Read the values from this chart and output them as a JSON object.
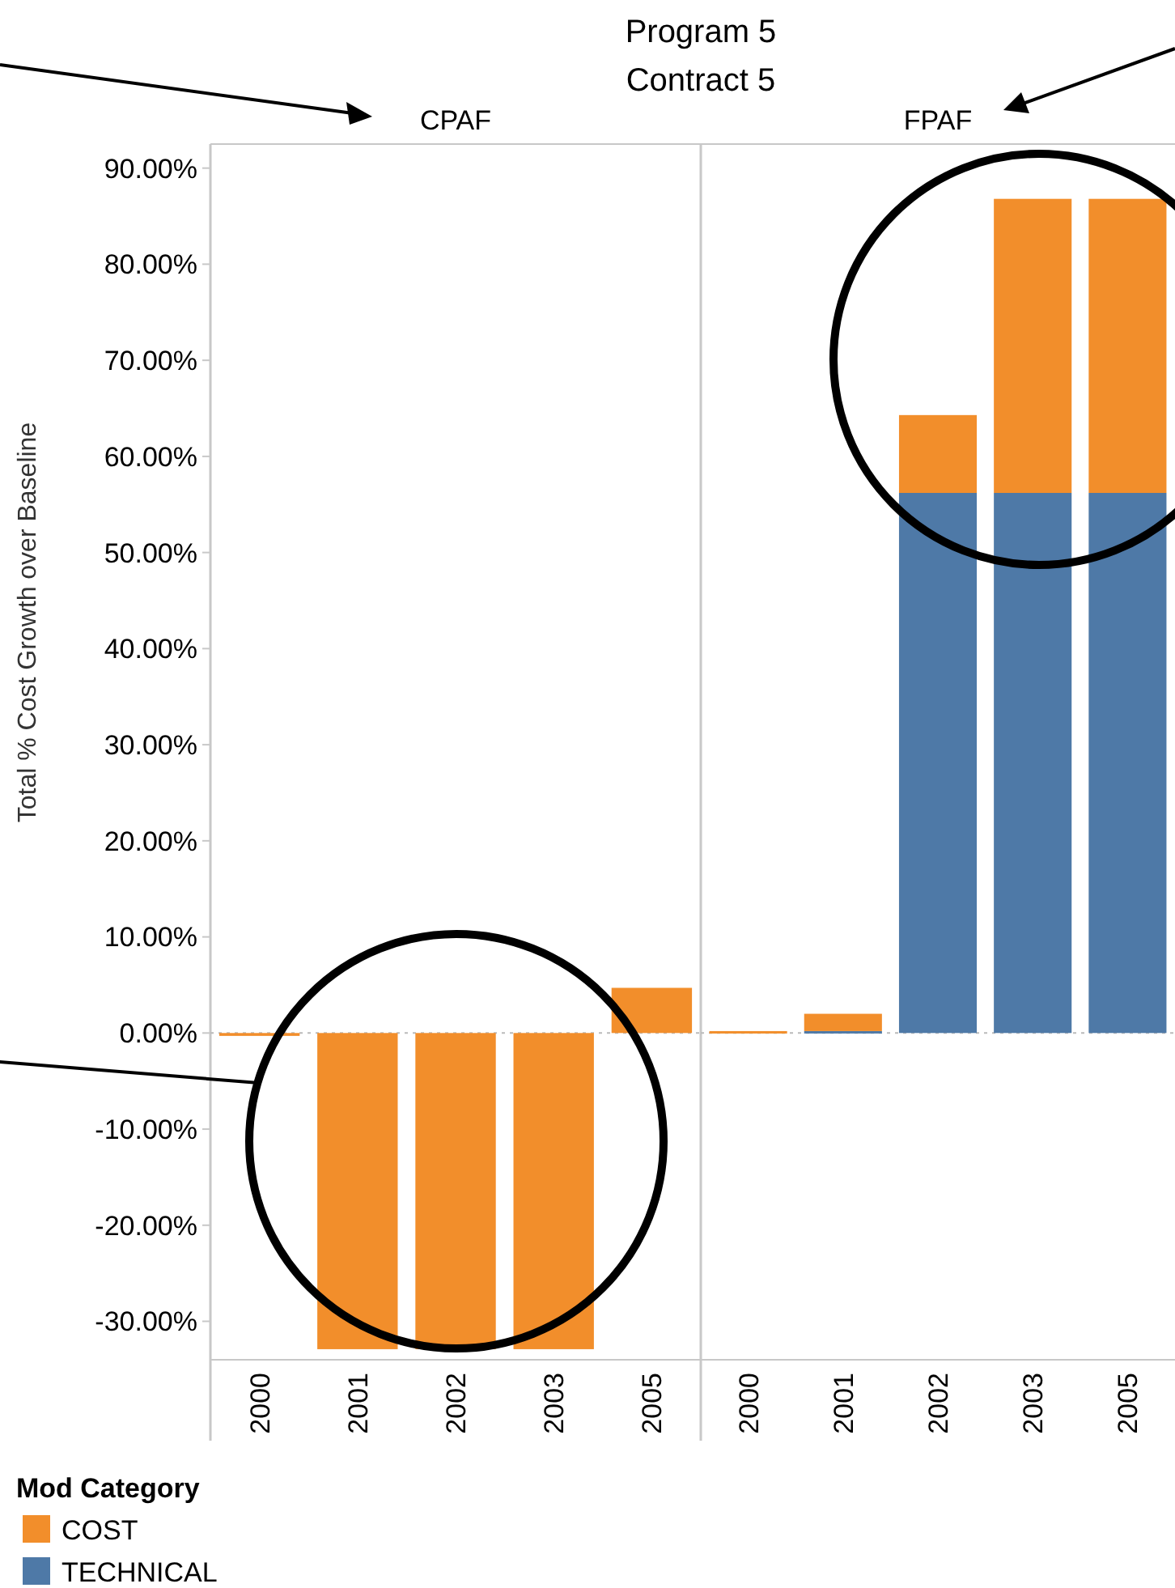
{
  "chart_data": [
    {
      "type": "bar",
      "title": "CPAF",
      "annotations": [
        "Program 5",
        "Contract 5"
      ],
      "ylabel": "Total % Cost Growth over Baseline",
      "legend_title": "Mod Category",
      "legend": "bottom",
      "stacked": true,
      "categories": [
        "2000",
        "2001",
        "2002",
        "2003",
        "2005"
      ],
      "series": [
        {
          "name": "TECHNICAL",
          "color": "#4e79a7",
          "values": [
            null,
            null,
            null,
            null,
            null
          ]
        },
        {
          "name": "COST",
          "color": "#f28e2b",
          "values": [
            -0.3,
            -32.9,
            -32.9,
            -32.9,
            4.7
          ]
        }
      ],
      "ref_lines": [
        {
          "axis": "y",
          "value": 0,
          "line_style": "dotted",
          "color": "#bbbbbb"
        }
      ],
      "ylim": [
        -34,
        92.5
      ],
      "yticks": [
        {
          "value": -30,
          "label": "-30.00%"
        },
        {
          "value": -20,
          "label": "-20.00%"
        },
        {
          "value": -10,
          "label": "-10.00%"
        },
        {
          "value": 0,
          "label": "0.00%"
        },
        {
          "value": 10,
          "label": "10.00%"
        },
        {
          "value": 20,
          "label": "20.00%"
        },
        {
          "value": 30,
          "label": "30.00%"
        },
        {
          "value": 40,
          "label": "40.00%"
        },
        {
          "value": 50,
          "label": "50.00%"
        },
        {
          "value": 60,
          "label": "60.00%"
        },
        {
          "value": 70,
          "label": "70.00%"
        },
        {
          "value": 80,
          "label": "80.00%"
        },
        {
          "value": 90,
          "label": "90.00%"
        }
      ]
    },
    {
      "type": "bar",
      "title": "FPAF",
      "stacked": true,
      "tick_labels": "x",
      "categories": [
        "2000",
        "2001",
        "2002",
        "2003",
        "2005"
      ],
      "series": [
        {
          "color": "#4e79a7",
          "values": [
            null,
            0.2,
            56.2,
            56.2,
            56.2
          ]
        },
        {
          "color": "#f28e2b",
          "values": [
            0.2,
            1.8,
            8.1,
            30.6,
            30.6
          ]
        }
      ],
      "ref_lines": [
        {
          "axis": "y",
          "value": 0,
          "line_style": "dotted",
          "color": "#bbbbbb"
        }
      ],
      "ylim": [
        -34,
        92.5
      ]
    }
  ]
}
